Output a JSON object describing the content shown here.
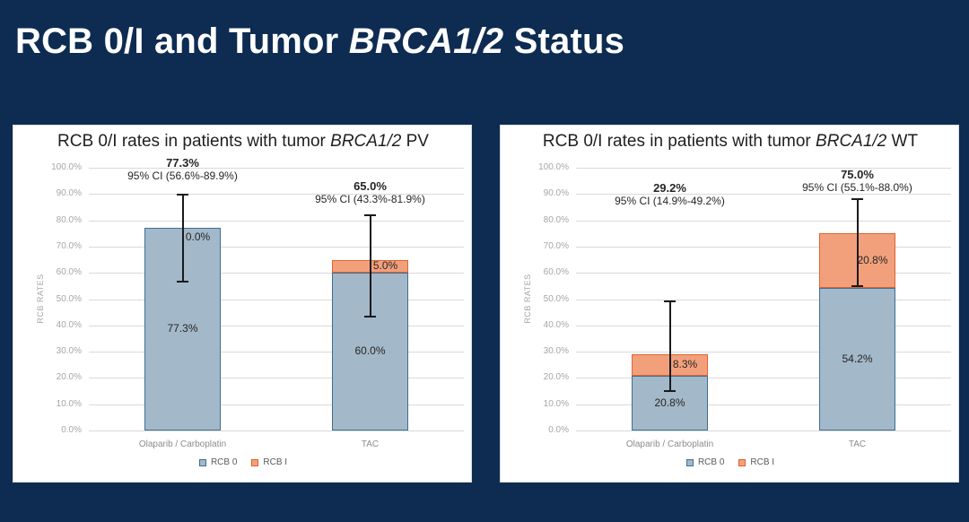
{
  "slide": {
    "title_prefix": "RCB 0/I and Tumor ",
    "title_italic": "BRCA1/2",
    "title_suffix": " Status",
    "background": "#0e2c52"
  },
  "colors": {
    "rcb0_fill": "#a3b8c8",
    "rcb0_border": "#3d7096",
    "rcb1_fill": "#f2a07b",
    "rcb1_border": "#e0622f",
    "error_bar": "#1a1a1a",
    "gridline": "#d9d9d9"
  },
  "chart_data": [
    {
      "type": "bar",
      "stacked": true,
      "title_prefix": "RCB 0/I rates in patients with tumor ",
      "title_italic": "BRCA1/2",
      "title_suffix": " PV",
      "ylabel": "RCB RATES",
      "ylim": [
        0,
        100
      ],
      "yticks": [
        "0.0%",
        "10.0%",
        "20.0%",
        "30.0%",
        "40.0%",
        "50.0%",
        "60.0%",
        "70.0%",
        "80.0%",
        "90.0%",
        "100.0%"
      ],
      "categories": [
        "Olaparib / Carboplatin",
        "TAC"
      ],
      "series": [
        {
          "name": "RCB 0",
          "values": [
            77.3,
            60.0
          ],
          "labels": [
            "77.3%",
            "60.0%"
          ]
        },
        {
          "name": "RCB I",
          "values": [
            0.0,
            5.0
          ],
          "labels": [
            "0.0%",
            "5.0%"
          ]
        }
      ],
      "totals": [
        "77.3%",
        "65.0%"
      ],
      "ci": [
        "95% CI (56.6%-89.9%)",
        "95% CI (43.3%-81.9%)"
      ],
      "error_bars": [
        {
          "low": 56.6,
          "high": 89.9
        },
        {
          "low": 43.3,
          "high": 81.9
        }
      ],
      "anno_top": [
        34,
        60
      ],
      "legend": [
        "RCB 0",
        "RCB I"
      ],
      "grid": true,
      "legend_position": "bottom"
    },
    {
      "type": "bar",
      "stacked": true,
      "title_prefix": "RCB 0/I rates in patients with tumor ",
      "title_italic": "BRCA1/2",
      "title_suffix": " WT",
      "ylabel": "RCB RATES",
      "ylim": [
        0,
        100
      ],
      "yticks": [
        "0.0%",
        "10.0%",
        "20.0%",
        "30.0%",
        "40.0%",
        "50.0%",
        "60.0%",
        "70.0%",
        "80.0%",
        "90.0%",
        "100.0%"
      ],
      "categories": [
        "Olaparib / Carboplatin",
        "TAC"
      ],
      "series": [
        {
          "name": "RCB 0",
          "values": [
            20.8,
            54.2
          ],
          "labels": [
            "20.8%",
            "54.2%"
          ]
        },
        {
          "name": "RCB I",
          "values": [
            8.3,
            20.8
          ],
          "labels": [
            "8.3%",
            "20.8%"
          ]
        }
      ],
      "totals": [
        "29.2%",
        "75.0%"
      ],
      "ci": [
        "95% CI (14.9%-49.2%)",
        "95% CI (55.1%-88.0%)"
      ],
      "error_bars": [
        {
          "low": 14.9,
          "high": 49.2
        },
        {
          "low": 55.1,
          "high": 88.0
        }
      ],
      "anno_top": [
        62,
        47
      ],
      "legend": [
        "RCB 0",
        "RCB I"
      ],
      "grid": true,
      "legend_position": "bottom"
    }
  ]
}
